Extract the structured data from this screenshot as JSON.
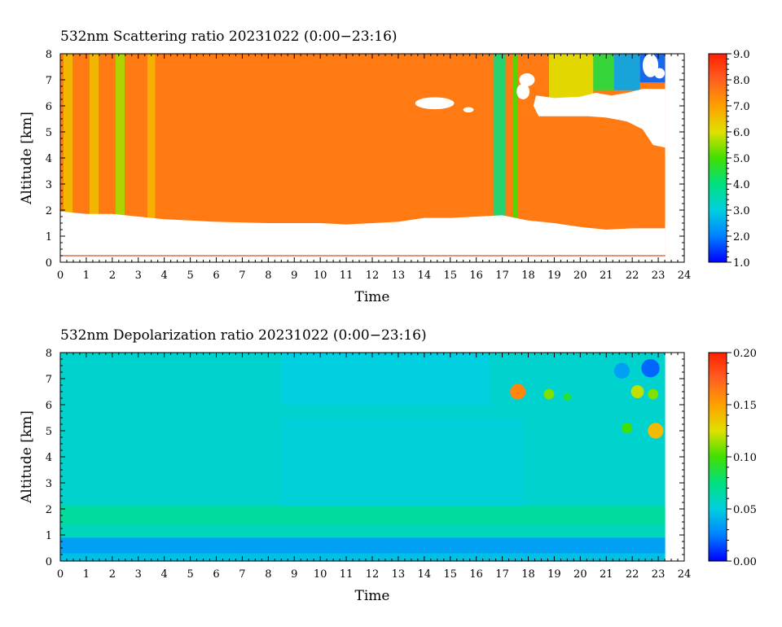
{
  "chart_data": [
    {
      "type": "heatmap",
      "title": "532nm Scattering ratio  20231022 (0:00−23:16)",
      "xlabel": "Time",
      "ylabel": "Altitude [km]",
      "xlim": [
        0,
        24
      ],
      "ylim": [
        0,
        8
      ],
      "xticks": [
        "0",
        "1",
        "2",
        "3",
        "4",
        "5",
        "6",
        "7",
        "8",
        "9",
        "10",
        "11",
        "12",
        "13",
        "14",
        "15",
        "16",
        "17",
        "18",
        "19",
        "20",
        "21",
        "22",
        "23",
        "24"
      ],
      "yticks": [
        "0",
        "1",
        "2",
        "3",
        "4",
        "5",
        "6",
        "7",
        "8"
      ],
      "data_time_range": [
        0,
        23.27
      ],
      "colorbar": {
        "min": 1.0,
        "max": 9.0,
        "ticks": [
          "1.0",
          "2.0",
          "3.0",
          "4.0",
          "5.0",
          "6.0",
          "7.0",
          "8.0",
          "9.0"
        ]
      },
      "background_value": 7.6,
      "lower_boundary_km": [
        [
          0,
          1.95
        ],
        [
          1,
          1.85
        ],
        [
          2,
          1.85
        ],
        [
          3,
          1.75
        ],
        [
          4,
          1.65
        ],
        [
          5,
          1.6
        ],
        [
          6,
          1.55
        ],
        [
          8,
          1.5
        ],
        [
          10,
          1.5
        ],
        [
          11,
          1.45
        ],
        [
          12,
          1.5
        ],
        [
          13,
          1.55
        ],
        [
          14,
          1.7
        ],
        [
          15,
          1.7
        ],
        [
          16,
          1.75
        ],
        [
          17,
          1.8
        ],
        [
          18,
          1.6
        ],
        [
          19,
          1.5
        ],
        [
          20,
          1.35
        ],
        [
          21,
          1.25
        ],
        [
          22,
          1.3
        ],
        [
          23.27,
          1.3
        ]
      ],
      "reference_line_km": 0.25,
      "vertical_features": [
        {
          "time": 0.3,
          "width": 0.35,
          "value": 6.5
        },
        {
          "time": 1.3,
          "width": 0.35,
          "value": 6.5
        },
        {
          "time": 2.3,
          "width": 0.35,
          "value": 5.6
        },
        {
          "time": 3.5,
          "width": 0.3,
          "value": 6.6
        },
        {
          "time": 16.9,
          "width": 0.45,
          "value": 4.0
        },
        {
          "time": 17.5,
          "width": 0.2,
          "value": 5.0
        }
      ],
      "cloud_regions": [
        {
          "t0": 18.8,
          "t1": 20.5,
          "z0": 6.3,
          "z1": 8.0,
          "value": 6.0
        },
        {
          "t0": 20.5,
          "t1": 21.3,
          "z0": 6.6,
          "z1": 8.0,
          "value": 4.5
        },
        {
          "t0": 21.3,
          "t1": 22.3,
          "z0": 6.6,
          "z1": 8.0,
          "value": 2.5
        },
        {
          "t0": 22.3,
          "t1": 23.27,
          "z0": 6.9,
          "z1": 8.0,
          "value": 1.8
        }
      ],
      "missing_regions": [
        {
          "t": 14.4,
          "z": 6.1,
          "rt": 0.75,
          "rz": 0.23
        },
        {
          "t": 15.7,
          "z": 5.85,
          "rt": 0.2,
          "rz": 0.1
        },
        {
          "t": 17.95,
          "z": 7.0,
          "rt": 0.3,
          "rz": 0.25
        },
        {
          "t": 17.8,
          "z": 6.55,
          "rt": 0.25,
          "rz": 0.3
        },
        {
          "t": 22.7,
          "z": 7.55,
          "rt": 0.3,
          "rz": 0.45
        },
        {
          "t": 23.05,
          "z": 7.25,
          "rt": 0.2,
          "rz": 0.2
        }
      ],
      "missing_polygon": [
        [
          18.3,
          6.4
        ],
        [
          19.0,
          6.3
        ],
        [
          20.0,
          6.35
        ],
        [
          20.6,
          6.5
        ],
        [
          21.2,
          6.4
        ],
        [
          21.8,
          6.5
        ],
        [
          22.4,
          6.65
        ],
        [
          23.27,
          6.65
        ],
        [
          23.27,
          4.4
        ],
        [
          22.8,
          4.5
        ],
        [
          22.4,
          5.1
        ],
        [
          21.8,
          5.4
        ],
        [
          21.0,
          5.55
        ],
        [
          20.3,
          5.6
        ],
        [
          19.6,
          5.6
        ],
        [
          18.9,
          5.6
        ],
        [
          18.4,
          5.6
        ],
        [
          18.2,
          6.0
        ]
      ]
    },
    {
      "type": "heatmap",
      "title": "532nm Depolarization ratio  20231022 (0:00−23:16)",
      "xlabel": "Time",
      "ylabel": "Altitude [km]",
      "xlim": [
        0,
        24
      ],
      "ylim": [
        0,
        8
      ],
      "xticks": [
        "0",
        "1",
        "2",
        "3",
        "4",
        "5",
        "6",
        "7",
        "8",
        "9",
        "10",
        "11",
        "12",
        "13",
        "14",
        "15",
        "16",
        "17",
        "18",
        "19",
        "20",
        "21",
        "22",
        "23",
        "24"
      ],
      "yticks": [
        "0",
        "1",
        "2",
        "3",
        "4",
        "5",
        "6",
        "7",
        "8"
      ],
      "data_time_range": [
        0,
        23.27
      ],
      "colorbar": {
        "min": 0.0,
        "max": 0.2,
        "ticks": [
          "0.00",
          "0.05",
          "0.10",
          "0.15",
          "0.20"
        ]
      },
      "background_value": 0.055,
      "layers": [
        {
          "t0": 0,
          "t1": 23.27,
          "z0": 0.0,
          "z1": 0.3,
          "value": 0.045
        },
        {
          "t0": 0,
          "t1": 23.27,
          "z0": 0.3,
          "z1": 0.9,
          "value": 0.035
        },
        {
          "t0": 0,
          "t1": 23.27,
          "z0": 0.9,
          "z1": 1.4,
          "value": 0.06
        },
        {
          "t0": 0,
          "t1": 23.27,
          "z0": 1.4,
          "z1": 2.1,
          "value": 0.068
        },
        {
          "t0": 8.5,
          "t1": 17.8,
          "z0": 2.1,
          "z1": 5.5,
          "value": 0.052
        },
        {
          "t0": 8.5,
          "t1": 16.5,
          "z0": 6.0,
          "z1": 8.0,
          "value": 0.05
        }
      ],
      "hotspots": [
        {
          "t": 17.6,
          "z": 6.5,
          "r": 0.3,
          "value": 0.16
        },
        {
          "t": 18.8,
          "z": 6.4,
          "r": 0.2,
          "value": 0.11
        },
        {
          "t": 19.5,
          "z": 6.3,
          "r": 0.15,
          "value": 0.09
        },
        {
          "t": 22.2,
          "z": 6.5,
          "r": 0.25,
          "value": 0.12
        },
        {
          "t": 22.8,
          "z": 6.4,
          "r": 0.2,
          "value": 0.11
        },
        {
          "t": 22.9,
          "z": 5.0,
          "r": 0.3,
          "value": 0.14
        },
        {
          "t": 21.8,
          "z": 5.1,
          "r": 0.2,
          "value": 0.1
        },
        {
          "t": 22.7,
          "z": 7.4,
          "r": 0.35,
          "value": 0.02
        },
        {
          "t": 21.6,
          "z": 7.3,
          "r": 0.3,
          "value": 0.035
        }
      ]
    }
  ]
}
